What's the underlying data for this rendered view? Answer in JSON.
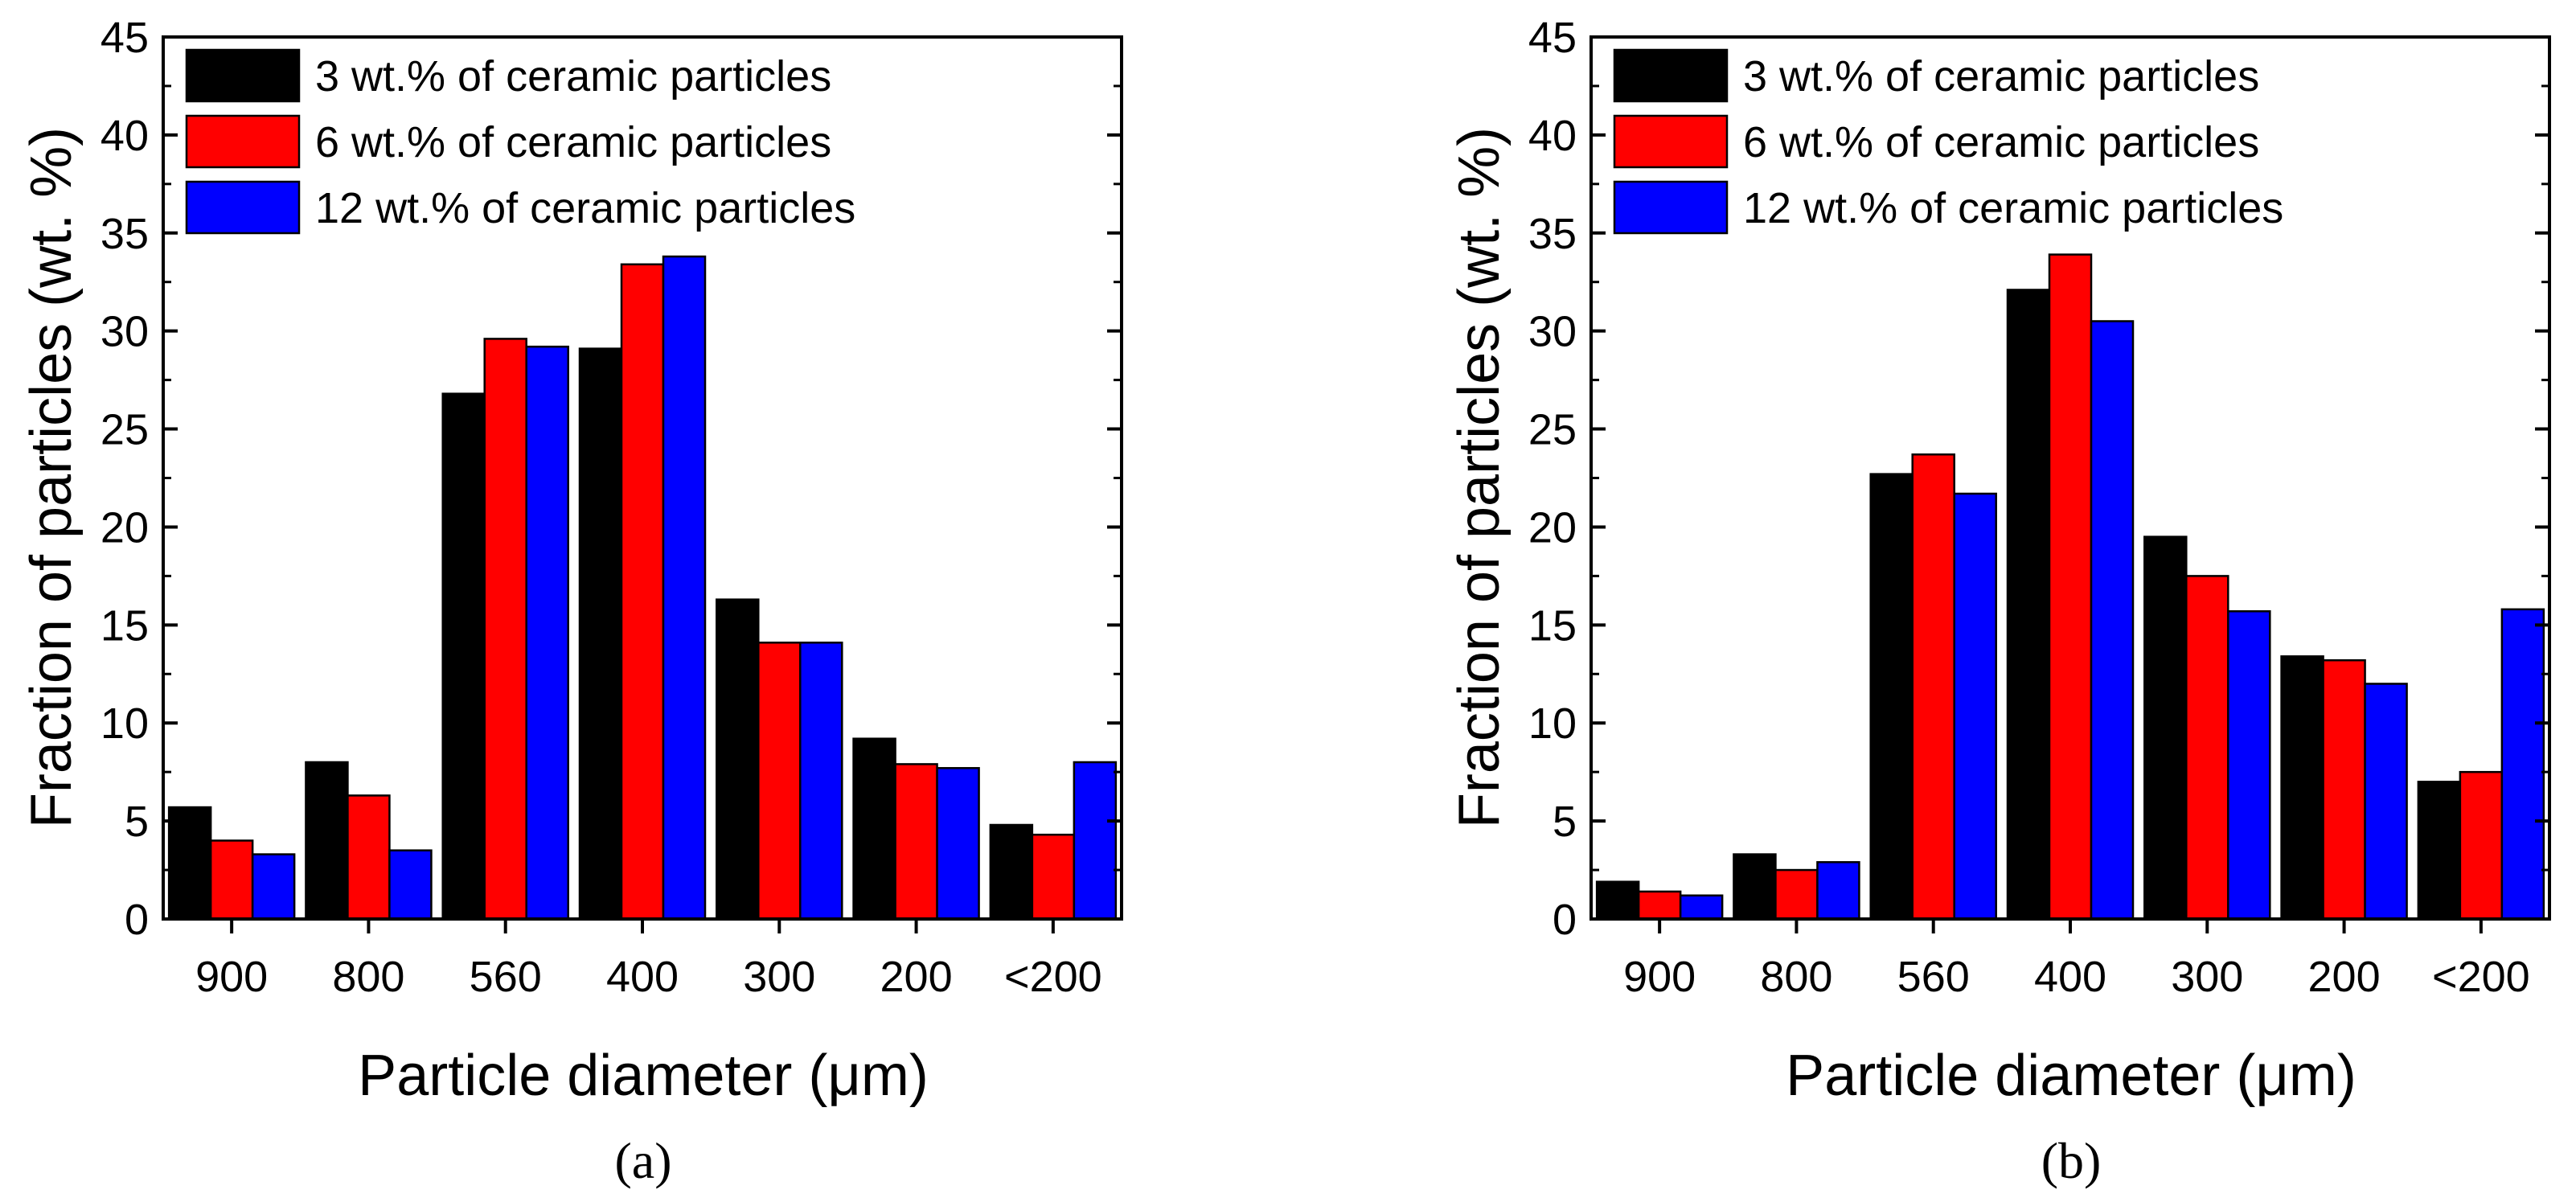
{
  "colors": {
    "series_3": "#000000",
    "series_6": "#ff0000",
    "series_12": "#0000ff"
  },
  "chart_data": [
    {
      "type": "bar",
      "panel_label": "(a)",
      "title": "",
      "xlabel": "Particle diameter (μm)",
      "ylabel": "Fraction of particles (wt. %)",
      "ylim": [
        0,
        45
      ],
      "yticks": [
        "0",
        "5",
        "10",
        "15",
        "20",
        "25",
        "30",
        "35",
        "40",
        "45"
      ],
      "categories": [
        "900",
        "800",
        "560",
        "400",
        "300",
        "200",
        "<200"
      ],
      "legend_position": "top-left",
      "series": [
        {
          "name": "3 wt.% of ceramic particles",
          "color": "#000000",
          "values": [
            5.7,
            8.0,
            26.8,
            29.1,
            16.3,
            9.2,
            4.8
          ]
        },
        {
          "name": "6 wt.% of ceramic particles",
          "color": "#ff0000",
          "values": [
            4.0,
            6.3,
            29.6,
            33.4,
            14.1,
            7.9,
            4.3
          ]
        },
        {
          "name": "12 wt.% of ceramic particles",
          "color": "#0000ff",
          "values": [
            3.3,
            3.5,
            29.2,
            33.8,
            14.1,
            7.7,
            8.0
          ]
        }
      ]
    },
    {
      "type": "bar",
      "panel_label": "(b)",
      "title": "",
      "xlabel": "Particle diameter (μm)",
      "ylabel": "Fraction of particles (wt. %)",
      "ylim": [
        0,
        45
      ],
      "yticks": [
        "0",
        "5",
        "10",
        "15",
        "20",
        "25",
        "30",
        "35",
        "40",
        "45"
      ],
      "categories": [
        "900",
        "800",
        "560",
        "400",
        "300",
        "200",
        "<200"
      ],
      "legend_position": "top-left",
      "series": [
        {
          "name": "3 wt.% of ceramic particles",
          "color": "#000000",
          "values": [
            1.9,
            3.3,
            22.7,
            32.1,
            19.5,
            13.4,
            7.0
          ]
        },
        {
          "name": "6 wt.% of ceramic particles",
          "color": "#ff0000",
          "values": [
            1.4,
            2.5,
            23.7,
            33.9,
            17.5,
            13.2,
            7.5
          ]
        },
        {
          "name": "12 wt.% of ceramic particles",
          "color": "#0000ff",
          "values": [
            1.2,
            2.9,
            21.7,
            30.5,
            15.7,
            12.0,
            15.8
          ]
        }
      ]
    }
  ]
}
